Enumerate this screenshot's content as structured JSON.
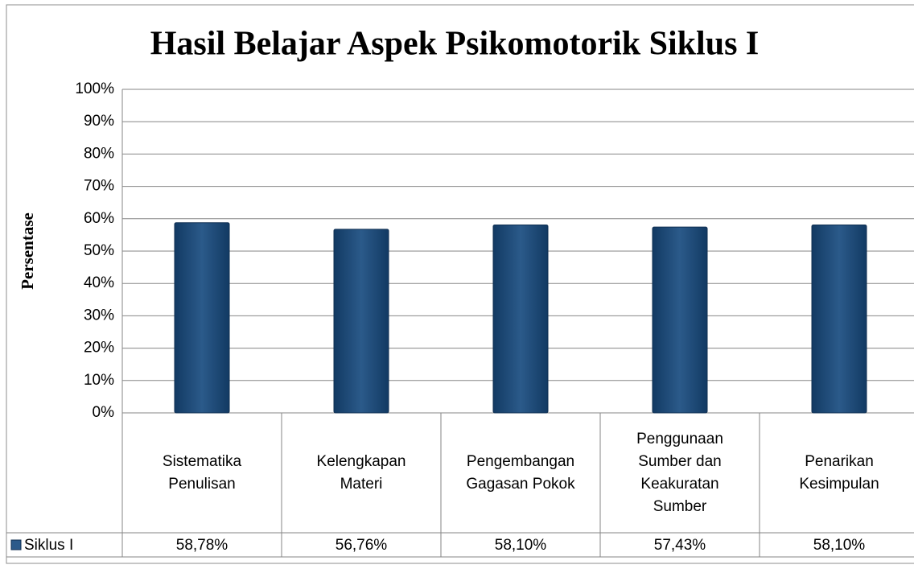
{
  "chart_data": {
    "type": "bar",
    "title": "Hasil Belajar Aspek Psikomotorik Siklus I",
    "y_label": "Persentase",
    "categories": [
      "Sistematika Penulisan",
      "Kelengkapan Materi",
      "Pengembangan Gagasan Pokok",
      "Penggunaan Sumber dan Keakuratan Sumber",
      "Penarikan Kesimpulan"
    ],
    "series": [
      {
        "name": "Siklus I",
        "color": "#2b5a8a",
        "values": [
          58.78,
          56.76,
          58.1,
          57.43,
          58.1
        ],
        "value_labels": [
          "58,78%",
          "56,76%",
          "58,10%",
          "57,43%",
          "58,10%"
        ]
      }
    ],
    "ylim": [
      0,
      100
    ],
    "yticks": [
      {
        "value": 0,
        "label": "0%"
      },
      {
        "value": 10,
        "label": "10%"
      },
      {
        "value": 20,
        "label": "20%"
      },
      {
        "value": 30,
        "label": "30%"
      },
      {
        "value": 40,
        "label": "40%"
      },
      {
        "value": 50,
        "label": "50%"
      },
      {
        "value": 60,
        "label": "60%"
      },
      {
        "value": 70,
        "label": "70%"
      },
      {
        "value": 80,
        "label": "80%"
      },
      {
        "value": 90,
        "label": "90%"
      },
      {
        "value": 100,
        "label": "100%"
      }
    ],
    "grid": true
  }
}
